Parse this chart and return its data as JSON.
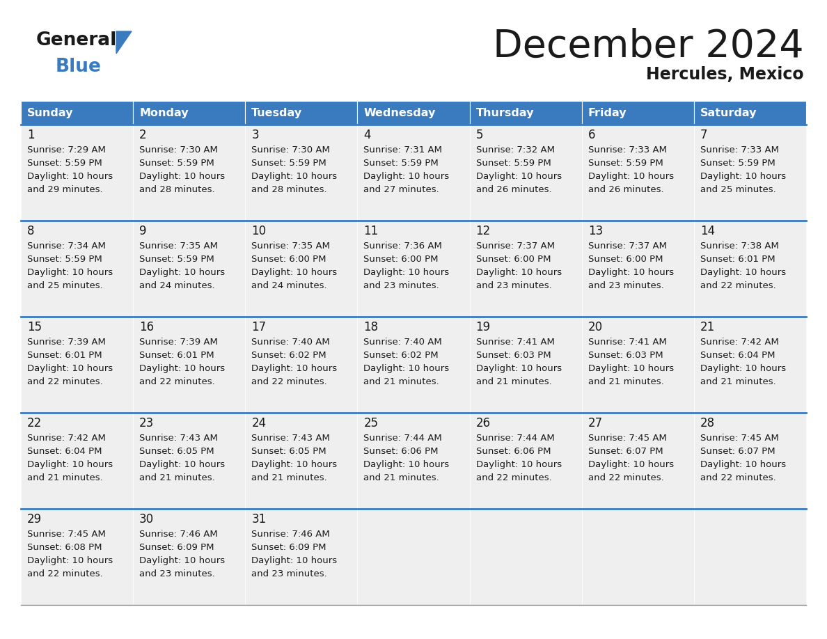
{
  "title": "December 2024",
  "subtitle": "Hercules, Mexico",
  "header_color": "#3a7abf",
  "header_text_color": "#ffffff",
  "bg_color": "#ffffff",
  "cell_bg": "#efefef",
  "days_of_week": [
    "Sunday",
    "Monday",
    "Tuesday",
    "Wednesday",
    "Thursday",
    "Friday",
    "Saturday"
  ],
  "cal_data": [
    [
      {
        "day": 1,
        "sunrise": "7:29 AM",
        "sunset": "5:59 PM",
        "daylight_h": "10 hours",
        "daylight_m": "and 29 minutes."
      },
      {
        "day": 2,
        "sunrise": "7:30 AM",
        "sunset": "5:59 PM",
        "daylight_h": "10 hours",
        "daylight_m": "and 28 minutes."
      },
      {
        "day": 3,
        "sunrise": "7:30 AM",
        "sunset": "5:59 PM",
        "daylight_h": "10 hours",
        "daylight_m": "and 28 minutes."
      },
      {
        "day": 4,
        "sunrise": "7:31 AM",
        "sunset": "5:59 PM",
        "daylight_h": "10 hours",
        "daylight_m": "and 27 minutes."
      },
      {
        "day": 5,
        "sunrise": "7:32 AM",
        "sunset": "5:59 PM",
        "daylight_h": "10 hours",
        "daylight_m": "and 26 minutes."
      },
      {
        "day": 6,
        "sunrise": "7:33 AM",
        "sunset": "5:59 PM",
        "daylight_h": "10 hours",
        "daylight_m": "and 26 minutes."
      },
      {
        "day": 7,
        "sunrise": "7:33 AM",
        "sunset": "5:59 PM",
        "daylight_h": "10 hours",
        "daylight_m": "and 25 minutes."
      }
    ],
    [
      {
        "day": 8,
        "sunrise": "7:34 AM",
        "sunset": "5:59 PM",
        "daylight_h": "10 hours",
        "daylight_m": "and 25 minutes."
      },
      {
        "day": 9,
        "sunrise": "7:35 AM",
        "sunset": "5:59 PM",
        "daylight_h": "10 hours",
        "daylight_m": "and 24 minutes."
      },
      {
        "day": 10,
        "sunrise": "7:35 AM",
        "sunset": "6:00 PM",
        "daylight_h": "10 hours",
        "daylight_m": "and 24 minutes."
      },
      {
        "day": 11,
        "sunrise": "7:36 AM",
        "sunset": "6:00 PM",
        "daylight_h": "10 hours",
        "daylight_m": "and 23 minutes."
      },
      {
        "day": 12,
        "sunrise": "7:37 AM",
        "sunset": "6:00 PM",
        "daylight_h": "10 hours",
        "daylight_m": "and 23 minutes."
      },
      {
        "day": 13,
        "sunrise": "7:37 AM",
        "sunset": "6:00 PM",
        "daylight_h": "10 hours",
        "daylight_m": "and 23 minutes."
      },
      {
        "day": 14,
        "sunrise": "7:38 AM",
        "sunset": "6:01 PM",
        "daylight_h": "10 hours",
        "daylight_m": "and 22 minutes."
      }
    ],
    [
      {
        "day": 15,
        "sunrise": "7:39 AM",
        "sunset": "6:01 PM",
        "daylight_h": "10 hours",
        "daylight_m": "and 22 minutes."
      },
      {
        "day": 16,
        "sunrise": "7:39 AM",
        "sunset": "6:01 PM",
        "daylight_h": "10 hours",
        "daylight_m": "and 22 minutes."
      },
      {
        "day": 17,
        "sunrise": "7:40 AM",
        "sunset": "6:02 PM",
        "daylight_h": "10 hours",
        "daylight_m": "and 22 minutes."
      },
      {
        "day": 18,
        "sunrise": "7:40 AM",
        "sunset": "6:02 PM",
        "daylight_h": "10 hours",
        "daylight_m": "and 21 minutes."
      },
      {
        "day": 19,
        "sunrise": "7:41 AM",
        "sunset": "6:03 PM",
        "daylight_h": "10 hours",
        "daylight_m": "and 21 minutes."
      },
      {
        "day": 20,
        "sunrise": "7:41 AM",
        "sunset": "6:03 PM",
        "daylight_h": "10 hours",
        "daylight_m": "and 21 minutes."
      },
      {
        "day": 21,
        "sunrise": "7:42 AM",
        "sunset": "6:04 PM",
        "daylight_h": "10 hours",
        "daylight_m": "and 21 minutes."
      }
    ],
    [
      {
        "day": 22,
        "sunrise": "7:42 AM",
        "sunset": "6:04 PM",
        "daylight_h": "10 hours",
        "daylight_m": "and 21 minutes."
      },
      {
        "day": 23,
        "sunrise": "7:43 AM",
        "sunset": "6:05 PM",
        "daylight_h": "10 hours",
        "daylight_m": "and 21 minutes."
      },
      {
        "day": 24,
        "sunrise": "7:43 AM",
        "sunset": "6:05 PM",
        "daylight_h": "10 hours",
        "daylight_m": "and 21 minutes."
      },
      {
        "day": 25,
        "sunrise": "7:44 AM",
        "sunset": "6:06 PM",
        "daylight_h": "10 hours",
        "daylight_m": "and 21 minutes."
      },
      {
        "day": 26,
        "sunrise": "7:44 AM",
        "sunset": "6:06 PM",
        "daylight_h": "10 hours",
        "daylight_m": "and 22 minutes."
      },
      {
        "day": 27,
        "sunrise": "7:45 AM",
        "sunset": "6:07 PM",
        "daylight_h": "10 hours",
        "daylight_m": "and 22 minutes."
      },
      {
        "day": 28,
        "sunrise": "7:45 AM",
        "sunset": "6:07 PM",
        "daylight_h": "10 hours",
        "daylight_m": "and 22 minutes."
      }
    ],
    [
      {
        "day": 29,
        "sunrise": "7:45 AM",
        "sunset": "6:08 PM",
        "daylight_h": "10 hours",
        "daylight_m": "and 22 minutes."
      },
      {
        "day": 30,
        "sunrise": "7:46 AM",
        "sunset": "6:09 PM",
        "daylight_h": "10 hours",
        "daylight_m": "and 23 minutes."
      },
      {
        "day": 31,
        "sunrise": "7:46 AM",
        "sunset": "6:09 PM",
        "daylight_h": "10 hours",
        "daylight_m": "and 23 minutes."
      },
      null,
      null,
      null,
      null
    ]
  ]
}
